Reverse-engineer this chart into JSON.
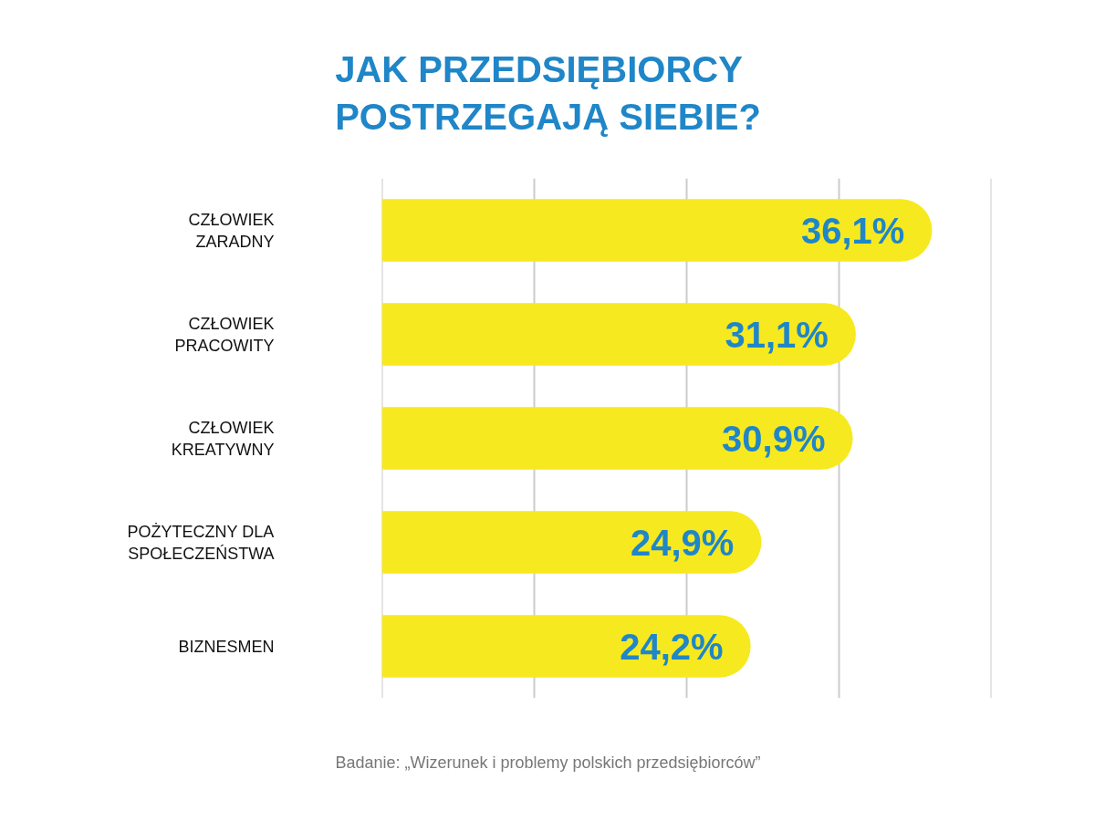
{
  "chart_data": {
    "type": "bar",
    "orientation": "horizontal",
    "title": "JAK PRZEDSIĘBIORCY POSTRZEGAJĄ SIEBIE?",
    "categories": [
      "CZŁOWIEK ZARADNY",
      "CZŁOWIEK PRACOWITY",
      "CZŁOWIEK KREATYWNY",
      "POŻYTECZNY DLA SPOŁECZEŃSTWA",
      "BIZNESMEN"
    ],
    "values": [
      36.1,
      31.1,
      30.9,
      24.9,
      24.2
    ],
    "color": "#f7e91f",
    "value_labels": [
      "36,1%",
      "31,1%",
      "30,9%",
      "24,9%",
      "24,2%"
    ],
    "xlim": [
      0,
      40
    ],
    "xticks": [
      {
        "value": 0,
        "label": null
      },
      {
        "value": 10,
        "label": null
      },
      {
        "value": 20,
        "label": null
      },
      {
        "value": 30,
        "label": null
      },
      {
        "value": 40,
        "label": null
      }
    ],
    "grid": "x",
    "tick_labels": "y",
    "annotations": [
      "Badanie: „Wizerunek i problemy polskich przedsiębiorców”"
    ]
  }
}
